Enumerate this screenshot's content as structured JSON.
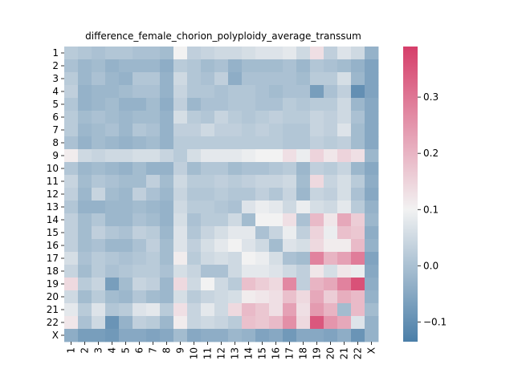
{
  "chart_data": {
    "type": "heatmap",
    "title": "difference_female_chorion_polyploidy_average_transsum",
    "xlabel": "",
    "ylabel": "",
    "row_labels": [
      "1",
      "2",
      "3",
      "4",
      "5",
      "6",
      "7",
      "8",
      "9",
      "10",
      "11",
      "12",
      "13",
      "14",
      "15",
      "16",
      "17",
      "18",
      "19",
      "20",
      "21",
      "22",
      "X"
    ],
    "col_labels": [
      "1",
      "2",
      "3",
      "4",
      "5",
      "6",
      "7",
      "8",
      "9",
      "10",
      "11",
      "12",
      "13",
      "14",
      "15",
      "16",
      "17",
      "18",
      "19",
      "20",
      "21",
      "22",
      "X"
    ],
    "colorbar": {
      "range": [
        -0.135,
        0.39
      ],
      "ticks": [
        -0.1,
        0.0,
        0.1,
        0.2,
        0.3
      ],
      "tick_labels": [
        "−0.1",
        "0.0",
        "0.1",
        "0.2",
        "0.3"
      ],
      "low_color": "#4a7ea8",
      "mid_color": "#f2f2f2",
      "high_color": "#d63e6a"
    },
    "values": [
      [
        0.02,
        0.01,
        0.0,
        0.01,
        0.01,
        0.0,
        0.0,
        -0.01,
        0.1,
        0.03,
        0.04,
        0.05,
        0.05,
        0.06,
        0.07,
        0.07,
        0.08,
        0.05,
        0.13,
        0.03,
        0.07,
        0.05,
        -0.03
      ],
      [
        0.0,
        -0.02,
        -0.01,
        -0.03,
        -0.02,
        -0.02,
        -0.02,
        -0.04,
        0.02,
        0.01,
        -0.01,
        0.0,
        -0.03,
        -0.01,
        -0.01,
        -0.01,
        0.0,
        -0.02,
        0.01,
        0.0,
        -0.01,
        -0.03,
        -0.06
      ],
      [
        0.02,
        -0.02,
        0.0,
        -0.02,
        -0.03,
        0.01,
        0.01,
        -0.03,
        0.05,
        0.01,
        0.0,
        0.03,
        -0.04,
        0.0,
        0.0,
        0.0,
        0.0,
        -0.01,
        0.02,
        0.02,
        0.06,
        -0.02,
        -0.06
      ],
      [
        0.03,
        -0.03,
        -0.02,
        -0.02,
        -0.01,
        0.0,
        0.0,
        -0.03,
        0.04,
        0.01,
        0.01,
        0.0,
        0.01,
        0.01,
        0.0,
        -0.01,
        0.0,
        0.0,
        -0.07,
        0.0,
        0.03,
        -0.1,
        -0.06
      ],
      [
        0.01,
        -0.03,
        -0.02,
        -0.01,
        -0.03,
        -0.03,
        -0.01,
        -0.04,
        0.03,
        -0.02,
        0.0,
        0.0,
        0.01,
        0.01,
        0.0,
        0.0,
        0.02,
        0.01,
        0.02,
        0.02,
        0.05,
        -0.02,
        -0.05
      ],
      [
        0.02,
        -0.01,
        0.0,
        -0.01,
        -0.02,
        -0.01,
        -0.01,
        -0.03,
        0.06,
        0.02,
        0.01,
        0.04,
        0.02,
        0.01,
        0.02,
        0.03,
        0.02,
        0.02,
        0.04,
        0.03,
        0.05,
        0.0,
        -0.05
      ],
      [
        0.02,
        -0.02,
        -0.01,
        0.0,
        -0.02,
        0.01,
        0.0,
        -0.03,
        0.03,
        0.03,
        0.05,
        0.03,
        0.03,
        0.02,
        0.03,
        0.02,
        0.01,
        0.01,
        0.04,
        0.03,
        0.07,
        -0.01,
        -0.05
      ],
      [
        0.0,
        -0.03,
        -0.01,
        -0.02,
        -0.03,
        -0.02,
        -0.01,
        -0.03,
        0.02,
        0.02,
        0.02,
        0.02,
        0.02,
        0.02,
        0.02,
        0.02,
        0.01,
        0.01,
        0.03,
        0.02,
        0.03,
        -0.01,
        -0.05
      ],
      [
        0.11,
        0.05,
        0.04,
        0.05,
        0.05,
        0.06,
        0.06,
        0.04,
        0.02,
        0.06,
        0.08,
        0.08,
        0.08,
        0.09,
        0.1,
        0.1,
        0.13,
        0.09,
        0.15,
        0.12,
        0.15,
        0.13,
        -0.02
      ],
      [
        0.01,
        -0.02,
        -0.01,
        -0.02,
        -0.03,
        -0.01,
        -0.03,
        -0.03,
        0.03,
        -0.01,
        0.01,
        0.01,
        -0.01,
        0.0,
        0.0,
        0.01,
        0.02,
        -0.02,
        0.03,
        0.02,
        0.04,
        -0.02,
        -0.05
      ],
      [
        0.04,
        -0.01,
        0.01,
        0.0,
        -0.01,
        -0.01,
        0.03,
        -0.01,
        0.05,
        0.02,
        0.02,
        0.03,
        0.02,
        0.03,
        0.04,
        0.04,
        0.05,
        -0.01,
        0.14,
        0.04,
        0.06,
        0.02,
        -0.04
      ],
      [
        0.03,
        -0.02,
        0.04,
        -0.01,
        -0.02,
        0.03,
        0.0,
        -0.02,
        0.04,
        0.01,
        0.01,
        0.02,
        0.01,
        0.01,
        0.03,
        0.01,
        0.04,
        -0.02,
        0.04,
        0.03,
        0.06,
        0.0,
        -0.05
      ],
      [
        0.01,
        -0.03,
        -0.03,
        -0.02,
        -0.02,
        -0.01,
        -0.02,
        -0.03,
        0.05,
        0.02,
        0.02,
        0.01,
        0.0,
        0.07,
        0.09,
        0.08,
        0.05,
        0.09,
        0.06,
        0.05,
        0.08,
        0.02,
        -0.03
      ],
      [
        0.03,
        -0.01,
        0.01,
        -0.02,
        -0.02,
        0.0,
        -0.01,
        -0.03,
        0.06,
        0.0,
        0.02,
        0.02,
        0.05,
        -0.01,
        0.1,
        0.1,
        0.13,
        0.0,
        0.19,
        0.12,
        0.22,
        0.16,
        -0.02
      ],
      [
        0.03,
        -0.01,
        0.03,
        0.01,
        0.0,
        0.03,
        0.02,
        -0.02,
        0.07,
        0.01,
        0.04,
        0.06,
        0.08,
        0.08,
        0.0,
        0.04,
        0.09,
        0.03,
        0.15,
        0.09,
        0.18,
        0.17,
        -0.04
      ],
      [
        0.03,
        -0.01,
        0.0,
        -0.02,
        -0.02,
        0.0,
        0.03,
        -0.01,
        0.07,
        0.03,
        0.06,
        0.08,
        0.1,
        0.07,
        0.05,
        -0.01,
        0.07,
        0.06,
        0.14,
        0.11,
        0.11,
        0.19,
        -0.03
      ],
      [
        0.06,
        0.0,
        0.02,
        0.01,
        0.0,
        0.01,
        0.02,
        -0.01,
        0.11,
        0.02,
        0.05,
        0.06,
        0.05,
        0.1,
        0.09,
        0.06,
        0.0,
        -0.01,
        0.28,
        0.2,
        0.23,
        0.29,
        -0.06
      ],
      [
        0.04,
        -0.01,
        0.02,
        0.0,
        0.01,
        0.02,
        0.02,
        0.0,
        0.06,
        0.04,
        0.0,
        0.0,
        0.05,
        0.08,
        0.08,
        0.07,
        0.05,
        0.03,
        0.12,
        0.06,
        0.12,
        0.09,
        -0.05
      ],
      [
        0.14,
        0.02,
        0.04,
        -0.07,
        -0.01,
        0.04,
        0.03,
        -0.02,
        0.14,
        0.05,
        0.1,
        0.05,
        0.02,
        0.18,
        0.16,
        0.14,
        0.27,
        0.03,
        0.2,
        0.22,
        0.28,
        0.36,
        -0.04
      ],
      [
        0.05,
        -0.01,
        0.02,
        -0.01,
        -0.02,
        0.01,
        -0.01,
        -0.02,
        0.06,
        0.02,
        0.04,
        0.05,
        0.06,
        0.11,
        0.12,
        0.13,
        0.18,
        0.14,
        0.22,
        0.16,
        0.21,
        0.19,
        -0.03
      ],
      [
        0.08,
        0.02,
        0.07,
        0.01,
        0.02,
        0.07,
        0.08,
        0.02,
        0.13,
        0.04,
        0.08,
        0.05,
        0.14,
        0.19,
        0.17,
        0.13,
        0.23,
        0.13,
        0.24,
        0.2,
        -0.01,
        0.19,
        -0.01
      ],
      [
        0.12,
        0.0,
        0.05,
        -0.09,
        -0.03,
        0.03,
        0.02,
        -0.02,
        0.11,
        0.04,
        0.05,
        0.04,
        0.02,
        0.18,
        0.17,
        0.19,
        0.26,
        0.14,
        0.35,
        0.25,
        0.22,
        0.07,
        -0.03
      ],
      [
        -0.04,
        -0.07,
        -0.07,
        -0.08,
        -0.05,
        -0.05,
        -0.06,
        -0.05,
        -0.01,
        -0.05,
        -0.04,
        -0.04,
        -0.02,
        -0.03,
        -0.06,
        -0.05,
        -0.08,
        -0.05,
        -0.05,
        -0.06,
        -0.04,
        -0.09,
        -0.03
      ]
    ]
  }
}
